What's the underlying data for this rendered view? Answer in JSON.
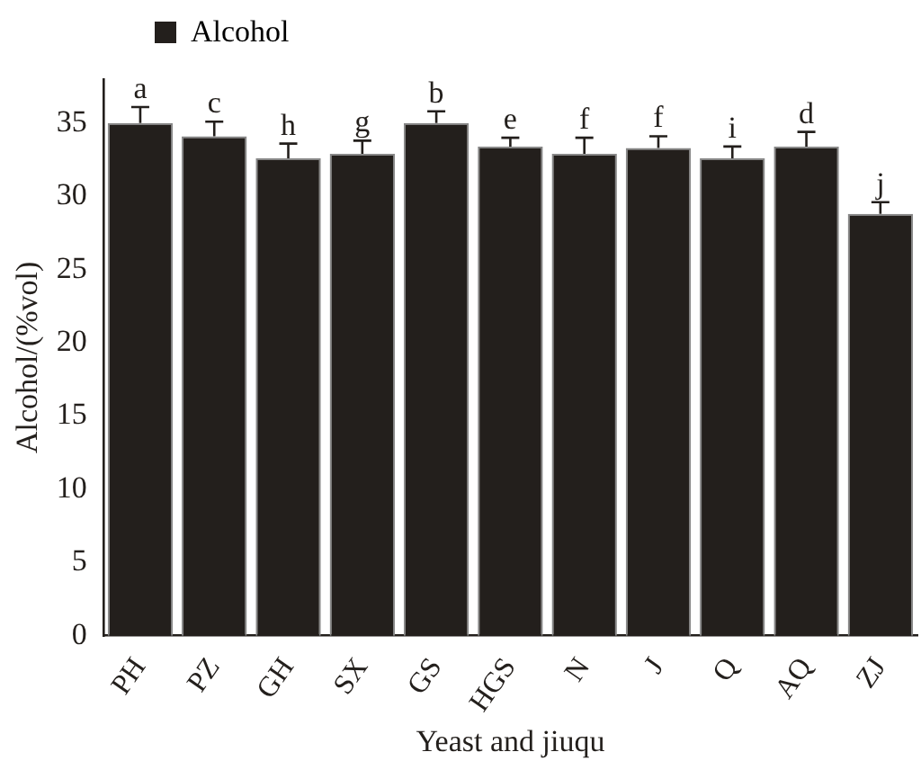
{
  "chart_data": {
    "type": "bar",
    "xlabel": "Yeast and jiuqu",
    "ylabel": "Alcohol/(%vol)",
    "categories": [
      "PH",
      "PZ",
      "GH",
      "SX",
      "GS",
      "HGS",
      "N",
      "J",
      "Q",
      "AQ",
      "ZJ"
    ],
    "series": [
      {
        "name": "Alcohol",
        "color": "#231f1c",
        "values": [
          35.0,
          34.1,
          32.6,
          32.9,
          35.0,
          33.4,
          32.9,
          33.3,
          32.6,
          33.4,
          28.8
        ],
        "errors": [
          [
            35.0,
            36.1
          ],
          [
            34.1,
            35.1
          ],
          [
            32.6,
            33.6
          ],
          [
            32.9,
            33.8
          ],
          [
            35.0,
            35.8
          ],
          [
            33.4,
            34.0
          ],
          [
            32.9,
            34.0
          ],
          [
            33.3,
            34.1
          ],
          [
            32.6,
            33.4
          ],
          [
            33.4,
            34.4
          ],
          [
            28.8,
            29.6
          ]
        ]
      }
    ],
    "ylim": [
      0,
      38
    ],
    "yticks": [
      0,
      5,
      10,
      15,
      20,
      25,
      30,
      35
    ],
    "grid": false,
    "legend": "top left",
    "annotations": [
      {
        "text": "a",
        "x": "PH",
        "y": 36.1
      },
      {
        "text": "c",
        "x": "PZ",
        "y": 35.1
      },
      {
        "text": "h",
        "x": "GH",
        "y": 33.6
      },
      {
        "text": "g",
        "x": "SX",
        "y": 33.8
      },
      {
        "text": "b",
        "x": "GS",
        "y": 35.8
      },
      {
        "text": "e",
        "x": "HGS",
        "y": 34.0
      },
      {
        "text": "f",
        "x": "N",
        "y": 34.0
      },
      {
        "text": "f",
        "x": "J",
        "y": 34.1
      },
      {
        "text": "i",
        "x": "Q",
        "y": 33.4
      },
      {
        "text": "d",
        "x": "AQ",
        "y": 34.4
      },
      {
        "text": "j",
        "x": "ZJ",
        "y": 29.6
      }
    ]
  }
}
